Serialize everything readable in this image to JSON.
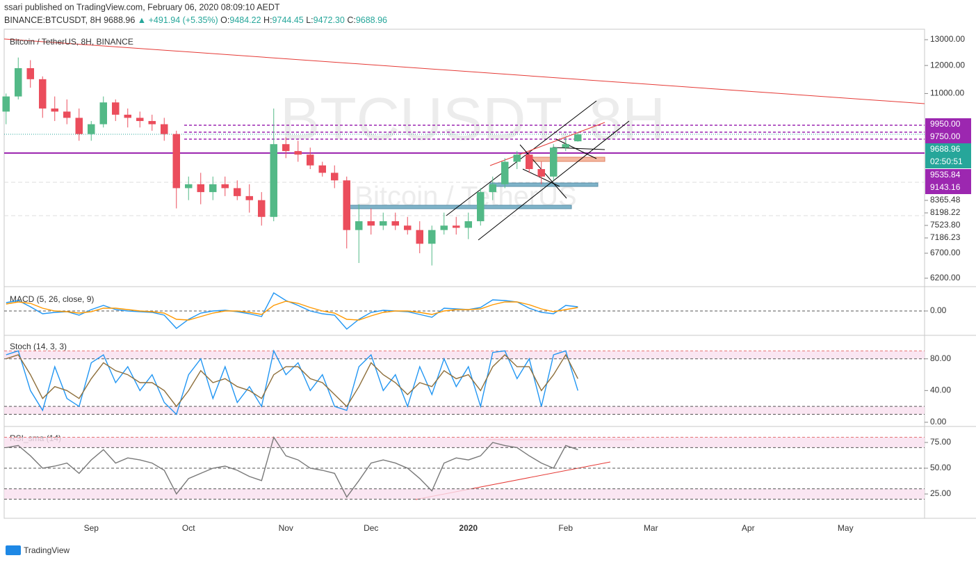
{
  "header": {
    "published": "ssari published on TradingView.com, February 06, 2020 08:09:10 AEDT",
    "symbol": "BINANCE:BTCUSDT, 8H",
    "last": "9688.96",
    "change": "▲ +491.94 (+5.35%)",
    "ohlc": [
      {
        "key": "O:",
        "value": "9484.22"
      },
      {
        "key": "H:",
        "value": "9744.45"
      },
      {
        "key": "L:",
        "value": "9472.30"
      },
      {
        "key": "C:",
        "value": "9688.96"
      }
    ]
  },
  "watermark": {
    "symbol": "BTCUSDT, 8H",
    "name": "Bitcoin / TetherUS"
  },
  "footer": {
    "brand": "TradingView"
  },
  "chart_data": [
    {
      "type": "candlestick",
      "title": "Bitcoin / TetherUS, 8H, BINANCE",
      "log_scale": true,
      "up_color": "#53b987",
      "down_color": "#eb4d5c",
      "categories": [
        null,
        null,
        null,
        null,
        null,
        null,
        null,
        "Sep",
        null,
        null,
        null,
        null,
        null,
        null,
        null,
        "Oct",
        null,
        null,
        null,
        null,
        null,
        null,
        null,
        "Nov",
        null,
        null,
        null,
        null,
        null,
        null,
        "Dec",
        null,
        null,
        null,
        null,
        null,
        null,
        null,
        "2020",
        null,
        null,
        null,
        null,
        null,
        null,
        null,
        "Feb",
        null,
        null,
        null,
        null,
        null,
        null,
        "Mar",
        null,
        null,
        null,
        null,
        null,
        null,
        null,
        "Apr",
        null,
        null,
        null,
        null,
        null,
        null,
        null,
        "May",
        null,
        null,
        null,
        null,
        null,
        null
      ],
      "open": [
        10400,
        10900,
        11900,
        11500,
        10500,
        10400,
        10200,
        9700,
        10000,
        10700,
        10300,
        10200,
        10100,
        10000,
        9700,
        8200,
        8300,
        8100,
        8300,
        8200,
        8000,
        7900,
        7500,
        9400,
        9200,
        9100,
        8800,
        8600,
        8400,
        7200,
        7400,
        7300,
        7400,
        7300,
        7200,
        6900,
        7200,
        7300,
        7250,
        7400,
        8100,
        8300,
        8900,
        9100,
        8700,
        8500,
        9300,
        9484.22,
        null,
        null,
        null,
        null,
        null,
        null,
        null,
        null,
        null,
        null,
        null,
        null,
        null,
        null,
        null,
        null,
        null,
        null,
        null,
        null,
        null,
        null,
        null,
        null,
        null,
        null,
        null,
        null
      ],
      "high": [
        11000,
        12300,
        12200,
        11600,
        10900,
        10800,
        10500,
        10100,
        10900,
        10800,
        10500,
        10400,
        10300,
        10200,
        9800,
        8500,
        8600,
        8500,
        8500,
        8400,
        8300,
        8100,
        10500,
        9600,
        9500,
        9300,
        8900,
        8800,
        8500,
        7800,
        7700,
        7600,
        7600,
        7500,
        7400,
        7300,
        7600,
        7500,
        7600,
        8200,
        8500,
        9000,
        9200,
        9200,
        8900,
        9400,
        9600,
        9744.45,
        null,
        null,
        null,
        null,
        null,
        null,
        null,
        null,
        null,
        null,
        null,
        null,
        null,
        null,
        null,
        null,
        null,
        null,
        null,
        null,
        null,
        null,
        null,
        null,
        null,
        null,
        null,
        null
      ],
      "low": [
        10000,
        10800,
        11200,
        10200,
        10100,
        10000,
        9500,
        9500,
        9900,
        10100,
        9900,
        9900,
        9800,
        9500,
        7700,
        7900,
        7800,
        7900,
        8000,
        7900,
        7600,
        7300,
        7400,
        9000,
        8900,
        8700,
        8500,
        8200,
        6800,
        6500,
        7100,
        7200,
        7200,
        7100,
        6700,
        6450,
        7100,
        7100,
        7000,
        7300,
        7900,
        8200,
        8700,
        8600,
        8300,
        8400,
        9200,
        9472.3,
        null,
        null,
        null,
        null,
        null,
        null,
        null,
        null,
        null,
        null,
        null,
        null,
        null,
        null,
        null,
        null,
        null,
        null,
        null,
        null,
        null,
        null,
        null,
        null,
        null,
        null,
        null,
        null
      ],
      "close": [
        10900,
        11900,
        11500,
        10500,
        10400,
        10200,
        9700,
        10000,
        10700,
        10300,
        10200,
        10100,
        10000,
        9700,
        8200,
        8300,
        8100,
        8300,
        8200,
        8000,
        7900,
        7500,
        9400,
        9200,
        9100,
        8800,
        8600,
        8400,
        7200,
        7400,
        7300,
        7400,
        7300,
        7200,
        6900,
        7200,
        7300,
        7250,
        7400,
        8100,
        8300,
        8900,
        9100,
        8700,
        8500,
        9300,
        9400,
        9688.96,
        null,
        null,
        null,
        null,
        null,
        null,
        null,
        null,
        null,
        null,
        null,
        null,
        null,
        null,
        null,
        null,
        null,
        null,
        null,
        null,
        null,
        null,
        null,
        null,
        null,
        null,
        null,
        null
      ],
      "ylim": [
        6040,
        13430
      ],
      "yticks": [
        {
          "value": 13000,
          "label": "13000.00"
        },
        {
          "value": 12000,
          "label": "12000.00"
        },
        {
          "value": 11000,
          "label": "11000.00"
        },
        {
          "value": 6700,
          "label": "6700.00"
        },
        {
          "value": 6200,
          "label": "6200.00"
        }
      ],
      "price_labels": [
        {
          "value": 9950,
          "label": "9950.00",
          "color": "#9c27b0"
        },
        {
          "value": 9750,
          "label": "9750.00",
          "color": "#9c27b0"
        },
        {
          "value": 9688.96,
          "label": "9688.96",
          "color": "#26a69a"
        },
        {
          "label": "02:50:51",
          "color": "#26a69a"
        },
        {
          "value": 9535.84,
          "label": "9535.84",
          "color": "#9c27b0"
        },
        {
          "value": 9143.16,
          "label": "9143.16",
          "color": "#9c27b0"
        },
        {
          "value": 8365.48,
          "label": "8365.48"
        },
        {
          "value": 8198.22,
          "label": "8198.22"
        },
        {
          "value": 7523.8,
          "label": "7523.80"
        },
        {
          "value": 7186.23,
          "label": "7186.23"
        }
      ]
    },
    {
      "type": "line",
      "title": "MACD (5, 26, close, 9)",
      "ylim": [
        -350,
        350
      ],
      "yticks": [
        {
          "value": 0,
          "label": "0.00"
        }
      ],
      "levels": [
        0
      ],
      "series": [
        {
          "color": "#2196f3",
          "values": [
            120,
            150,
            60,
            -40,
            -20,
            -10,
            -60,
            20,
            80,
            20,
            0,
            -10,
            -20,
            -60,
            -250,
            -120,
            -30,
            0,
            10,
            -10,
            -40,
            -80,
            260,
            150,
            80,
            0,
            -40,
            -60,
            -260,
            -120,
            -20,
            10,
            0,
            -10,
            -50,
            -90,
            40,
            30,
            20,
            50,
            160,
            150,
            130,
            40,
            -20,
            -40,
            80,
            60,
            null,
            null,
            null,
            null,
            null,
            null,
            null,
            null,
            null,
            null,
            null,
            null,
            null,
            null,
            null,
            null,
            null,
            null,
            null,
            null,
            null,
            null,
            null,
            null,
            null,
            null,
            null,
            null
          ]
        },
        {
          "color": "#ff9800",
          "values": [
            100,
            130,
            110,
            40,
            0,
            -10,
            -30,
            -10,
            40,
            40,
            20,
            0,
            -10,
            -30,
            -120,
            -130,
            -80,
            -30,
            0,
            0,
            -20,
            -50,
            80,
            140,
            110,
            50,
            0,
            -30,
            -120,
            -130,
            -70,
            -20,
            0,
            0,
            -20,
            -50,
            0,
            20,
            20,
            30,
            90,
            130,
            130,
            90,
            30,
            -10,
            20,
            50,
            null,
            null,
            null,
            null,
            null,
            null,
            null,
            null,
            null,
            null,
            null,
            null,
            null,
            null,
            null,
            null,
            null,
            null,
            null,
            null,
            null,
            null,
            null,
            null,
            null,
            null,
            null,
            null
          ]
        }
      ]
    },
    {
      "type": "line",
      "title": "Stoch (14, 3, 3)",
      "ylim": [
        -5.3,
        109.6
      ],
      "yticks": [
        {
          "value": 80,
          "label": "80.00"
        },
        {
          "value": 40,
          "label": "40.00"
        },
        {
          "value": 0,
          "label": "0.00"
        }
      ],
      "levels": [
        90,
        80,
        20,
        10
      ],
      "series": [
        {
          "color": "#2196f3",
          "values": [
            85,
            90,
            40,
            15,
            70,
            30,
            20,
            75,
            85,
            50,
            70,
            40,
            60,
            25,
            10,
            60,
            80,
            30,
            70,
            25,
            45,
            20,
            90,
            60,
            75,
            40,
            60,
            20,
            15,
            70,
            85,
            40,
            60,
            20,
            70,
            35,
            80,
            45,
            70,
            20,
            88,
            90,
            55,
            80,
            20,
            85,
            90,
            40,
            null,
            null,
            null,
            null,
            null,
            null,
            null,
            null,
            null,
            null,
            null,
            null,
            null,
            null,
            null,
            null,
            null,
            null,
            null,
            null,
            null,
            null,
            null,
            null,
            null,
            null,
            null,
            null
          ]
        },
        {
          "color": "#8d6e3a",
          "values": [
            80,
            85,
            60,
            30,
            45,
            40,
            30,
            55,
            75,
            65,
            60,
            50,
            50,
            40,
            20,
            40,
            65,
            50,
            55,
            45,
            40,
            30,
            60,
            70,
            70,
            55,
            50,
            35,
            20,
            45,
            75,
            60,
            50,
            35,
            50,
            45,
            65,
            55,
            60,
            40,
            70,
            85,
            70,
            70,
            40,
            60,
            85,
            55,
            null,
            null,
            null,
            null,
            null,
            null,
            null,
            null,
            null,
            null,
            null,
            null,
            null,
            null,
            null,
            null,
            null,
            null,
            null,
            null,
            null,
            null,
            null,
            null,
            null,
            null,
            null,
            null
          ]
        }
      ]
    },
    {
      "type": "line",
      "title": "RSI_sma (14)",
      "ylim": [
        1.4,
        90.5
      ],
      "yticks": [
        {
          "value": 75,
          "label": "75.00"
        },
        {
          "value": 50,
          "label": "50.00"
        },
        {
          "value": 25,
          "label": "25.00"
        }
      ],
      "levels": [
        80,
        70,
        50,
        30,
        20
      ],
      "series": [
        {
          "color": "#787878",
          "values": [
            70,
            72,
            62,
            50,
            52,
            55,
            45,
            58,
            68,
            55,
            60,
            58,
            55,
            48,
            25,
            40,
            45,
            50,
            52,
            48,
            42,
            38,
            80,
            62,
            58,
            50,
            48,
            45,
            22,
            38,
            55,
            58,
            55,
            50,
            40,
            28,
            55,
            60,
            58,
            62,
            75,
            72,
            70,
            62,
            55,
            50,
            72,
            68,
            null,
            null,
            null,
            null,
            null,
            null,
            null,
            null,
            null,
            null,
            null,
            null,
            null,
            null,
            null,
            null,
            null,
            null,
            null,
            null,
            null,
            null,
            null,
            null,
            null,
            null,
            null,
            null
          ]
        }
      ]
    }
  ]
}
